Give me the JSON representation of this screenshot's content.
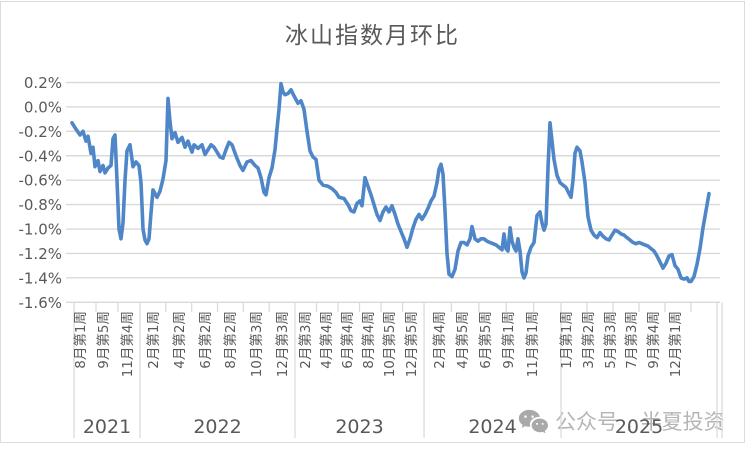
{
  "colors": {
    "line": "#4e86c8",
    "grid": "#d9d9d9",
    "axis_text": "#595959",
    "title_text": "#595959",
    "watermark": "#b5b5b5",
    "frame_border": "#dcdcdc"
  },
  "watermark": {
    "icon": "wechat-icon",
    "text1": "公众号",
    "divider": ",",
    "text2": "半夏投资"
  },
  "chart_data": {
    "type": "line",
    "title": "冰山指数月环比",
    "grid": true,
    "legend": false,
    "y_axis": {
      "unit": "%",
      "max": 0.2,
      "min": -1.6,
      "step": 0.2,
      "tick_labels": [
        "0.2%",
        "0.0%",
        "-0.2%",
        "-0.4%",
        "-0.6%",
        "-0.8%",
        "-1.0%",
        "-1.2%",
        "-1.4%",
        "-1.6%"
      ]
    },
    "x_axis": {
      "ticks": [
        {
          "label": "8月第1周",
          "f": 0.017
        },
        {
          "label": "9月第5周",
          "f": 0.0526
        },
        {
          "label": "11月第4周",
          "f": 0.0897
        },
        {
          "label": "2月第1周",
          "f": 0.1298
        },
        {
          "label": "4月第2周",
          "f": 0.17
        },
        {
          "label": "6月第2周",
          "f": 0.2102
        },
        {
          "label": "8月第2周",
          "f": 0.2489
        },
        {
          "label": "10月第3周",
          "f": 0.289
        },
        {
          "label": "12月第3周",
          "f": 0.3292
        },
        {
          "label": "2月第3周",
          "f": 0.3648
        },
        {
          "label": "4月第4周",
          "f": 0.3972
        },
        {
          "label": "6月第4周",
          "f": 0.4297
        },
        {
          "label": "8月第4周",
          "f": 0.4622
        },
        {
          "label": "10月第5周",
          "f": 0.4946
        },
        {
          "label": "12月第5周",
          "f": 0.5286
        },
        {
          "label": "2月第4周",
          "f": 0.5719
        },
        {
          "label": "4月第5周",
          "f": 0.6074
        },
        {
          "label": "6月第5周",
          "f": 0.643
        },
        {
          "label": "9月第1周",
          "f": 0.6785
        },
        {
          "label": "11月第1周",
          "f": 0.7156
        },
        {
          "label": "1月第1周",
          "f": 0.7682
        },
        {
          "label": "3月第2周",
          "f": 0.8022
        },
        {
          "label": "5月第3周",
          "f": 0.8362
        },
        {
          "label": "7月第3周",
          "f": 0.8686
        },
        {
          "label": "9月第4周",
          "f": 0.9026
        },
        {
          "label": "12月第1周",
          "f": 0.9366
        }
      ],
      "year_groups": [
        {
          "label": "2021",
          "f0": 0.0062,
          "f1": 0.1082,
          "slots": 3
        },
        {
          "label": "2022",
          "f0": 0.1082,
          "f1": 0.3478,
          "slots": 6
        },
        {
          "label": "2023",
          "f0": 0.3478,
          "f1": 0.5472,
          "slots": 6
        },
        {
          "label": "2024",
          "f0": 0.5472,
          "f1": 0.7589,
          "slots": 5
        },
        {
          "label": "2025",
          "f0": 0.7589,
          "f1": 1.0,
          "slots": 6
        }
      ]
    },
    "series": [
      {
        "name": "冰山指数月环比",
        "color": "#4e86c8",
        "points": [
          [
            0.0,
            -0.13
          ],
          [
            0.0047,
            -0.17
          ],
          [
            0.0125,
            -0.23
          ],
          [
            0.0172,
            -0.2
          ],
          [
            0.0219,
            -0.28
          ],
          [
            0.0251,
            -0.24
          ],
          [
            0.0298,
            -0.38
          ],
          [
            0.0329,
            -0.33
          ],
          [
            0.0361,
            -0.49
          ],
          [
            0.0408,
            -0.44
          ],
          [
            0.0439,
            -0.53
          ],
          [
            0.0486,
            -0.48
          ],
          [
            0.0517,
            -0.54
          ],
          [
            0.0564,
            -0.5
          ],
          [
            0.0611,
            -0.48
          ],
          [
            0.0643,
            -0.26
          ],
          [
            0.0674,
            -0.23
          ],
          [
            0.0705,
            -0.6
          ],
          [
            0.0737,
            -1.0
          ],
          [
            0.0768,
            -1.08
          ],
          [
            0.0799,
            -0.95
          ],
          [
            0.0831,
            -0.6
          ],
          [
            0.0862,
            -0.36
          ],
          [
            0.0909,
            -0.31
          ],
          [
            0.0956,
            -0.49
          ],
          [
            0.1003,
            -0.45
          ],
          [
            0.105,
            -0.48
          ],
          [
            0.1082,
            -0.62
          ],
          [
            0.1113,
            -1.0
          ],
          [
            0.1144,
            -1.09
          ],
          [
            0.1176,
            -1.12
          ],
          [
            0.1207,
            -1.08
          ],
          [
            0.1238,
            -0.87
          ],
          [
            0.127,
            -0.68
          ],
          [
            0.1301,
            -0.71
          ],
          [
            0.1332,
            -0.74
          ],
          [
            0.1379,
            -0.69
          ],
          [
            0.1426,
            -0.59
          ],
          [
            0.1473,
            -0.44
          ],
          [
            0.1505,
            0.07
          ],
          [
            0.1536,
            -0.12
          ],
          [
            0.1567,
            -0.26
          ],
          [
            0.1614,
            -0.21
          ],
          [
            0.1661,
            -0.29
          ],
          [
            0.1724,
            -0.25
          ],
          [
            0.1771,
            -0.33
          ],
          [
            0.1818,
            -0.28
          ],
          [
            0.1881,
            -0.37
          ],
          [
            0.1912,
            -0.31
          ],
          [
            0.1975,
            -0.34
          ],
          [
            0.2038,
            -0.31
          ],
          [
            0.2085,
            -0.39
          ],
          [
            0.2132,
            -0.35
          ],
          [
            0.2179,
            -0.31
          ],
          [
            0.2226,
            -0.33
          ],
          [
            0.2273,
            -0.37
          ],
          [
            0.232,
            -0.41
          ],
          [
            0.2367,
            -0.42
          ],
          [
            0.2414,
            -0.35
          ],
          [
            0.2461,
            -0.29
          ],
          [
            0.2508,
            -0.31
          ],
          [
            0.2571,
            -0.4
          ],
          [
            0.2633,
            -0.48
          ],
          [
            0.268,
            -0.52
          ],
          [
            0.2743,
            -0.45
          ],
          [
            0.2806,
            -0.44
          ],
          [
            0.2868,
            -0.48
          ],
          [
            0.2915,
            -0.5
          ],
          [
            0.2962,
            -0.58
          ],
          [
            0.3009,
            -0.7
          ],
          [
            0.3041,
            -0.72
          ],
          [
            0.3088,
            -0.58
          ],
          [
            0.3135,
            -0.5
          ],
          [
            0.3182,
            -0.35
          ],
          [
            0.3213,
            -0.18
          ],
          [
            0.3245,
            -0.02
          ],
          [
            0.3276,
            0.19
          ],
          [
            0.3308,
            0.12
          ],
          [
            0.3339,
            0.1
          ],
          [
            0.3386,
            0.11
          ],
          [
            0.3433,
            0.14
          ],
          [
            0.348,
            0.09
          ],
          [
            0.3542,
            0.03
          ],
          [
            0.3589,
            0.05
          ],
          [
            0.3636,
            -0.02
          ],
          [
            0.3683,
            -0.2
          ],
          [
            0.373,
            -0.36
          ],
          [
            0.3777,
            -0.41
          ],
          [
            0.3824,
            -0.43
          ],
          [
            0.3871,
            -0.6
          ],
          [
            0.3934,
            -0.64
          ],
          [
            0.4013,
            -0.65
          ],
          [
            0.4075,
            -0.67
          ],
          [
            0.4138,
            -0.7
          ],
          [
            0.4185,
            -0.74
          ],
          [
            0.4263,
            -0.75
          ],
          [
            0.4326,
            -0.8
          ],
          [
            0.4373,
            -0.85
          ],
          [
            0.442,
            -0.86
          ],
          [
            0.4467,
            -0.79
          ],
          [
            0.4514,
            -0.77
          ],
          [
            0.4545,
            -0.81
          ],
          [
            0.4592,
            -0.58
          ],
          [
            0.4639,
            -0.65
          ],
          [
            0.4687,
            -0.72
          ],
          [
            0.4734,
            -0.8
          ],
          [
            0.4781,
            -0.88
          ],
          [
            0.4828,
            -0.93
          ],
          [
            0.4875,
            -0.86
          ],
          [
            0.4922,
            -0.82
          ],
          [
            0.4969,
            -0.86
          ],
          [
            0.5016,
            -0.81
          ],
          [
            0.5063,
            -0.88
          ],
          [
            0.511,
            -0.96
          ],
          [
            0.5157,
            -1.02
          ],
          [
            0.5204,
            -1.08
          ],
          [
            0.5251,
            -1.15
          ],
          [
            0.5298,
            -1.08
          ],
          [
            0.5345,
            -0.99
          ],
          [
            0.5392,
            -0.92
          ],
          [
            0.5439,
            -0.88
          ],
          [
            0.5486,
            -0.92
          ],
          [
            0.5533,
            -0.88
          ],
          [
            0.558,
            -0.83
          ],
          [
            0.5627,
            -0.77
          ],
          [
            0.5674,
            -0.73
          ],
          [
            0.5721,
            -0.62
          ],
          [
            0.5752,
            -0.51
          ],
          [
            0.5784,
            -0.47
          ],
          [
            0.5815,
            -0.55
          ],
          [
            0.5846,
            -0.85
          ],
          [
            0.5878,
            -1.2
          ],
          [
            0.5909,
            -1.37
          ],
          [
            0.5956,
            -1.39
          ],
          [
            0.6003,
            -1.33
          ],
          [
            0.605,
            -1.18
          ],
          [
            0.6097,
            -1.11
          ],
          [
            0.6144,
            -1.11
          ],
          [
            0.6191,
            -1.13
          ],
          [
            0.6238,
            -1.08
          ],
          [
            0.627,
            -0.98
          ],
          [
            0.6317,
            -1.08
          ],
          [
            0.6364,
            -1.1
          ],
          [
            0.6411,
            -1.08
          ],
          [
            0.6458,
            -1.08
          ],
          [
            0.6505,
            -1.1
          ],
          [
            0.6552,
            -1.11
          ],
          [
            0.6599,
            -1.12
          ],
          [
            0.6646,
            -1.13
          ],
          [
            0.6693,
            -1.15
          ],
          [
            0.674,
            -1.17
          ],
          [
            0.6771,
            -1.04
          ],
          [
            0.6803,
            -1.16
          ],
          [
            0.6834,
            -1.18
          ],
          [
            0.6866,
            -0.99
          ],
          [
            0.6897,
            -1.1
          ],
          [
            0.6928,
            -1.15
          ],
          [
            0.696,
            -1.18
          ],
          [
            0.6991,
            -1.08
          ],
          [
            0.7022,
            -1.18
          ],
          [
            0.7053,
            -1.35
          ],
          [
            0.7085,
            -1.4
          ],
          [
            0.7116,
            -1.36
          ],
          [
            0.7147,
            -1.22
          ],
          [
            0.7194,
            -1.15
          ],
          [
            0.7241,
            -1.11
          ],
          [
            0.7288,
            -0.89
          ],
          [
            0.7335,
            -0.86
          ],
          [
            0.7367,
            -0.95
          ],
          [
            0.7398,
            -1.01
          ],
          [
            0.7429,
            -0.96
          ],
          [
            0.7461,
            -0.5
          ],
          [
            0.7492,
            -0.13
          ],
          [
            0.7523,
            -0.28
          ],
          [
            0.7555,
            -0.43
          ],
          [
            0.7602,
            -0.56
          ],
          [
            0.7649,
            -0.62
          ],
          [
            0.7696,
            -0.64
          ],
          [
            0.7743,
            -0.66
          ],
          [
            0.779,
            -0.71
          ],
          [
            0.7821,
            -0.74
          ],
          [
            0.7853,
            -0.6
          ],
          [
            0.7884,
            -0.38
          ],
          [
            0.7916,
            -0.33
          ],
          [
            0.7963,
            -0.36
          ],
          [
            0.7994,
            -0.45
          ],
          [
            0.8041,
            -0.62
          ],
          [
            0.8088,
            -0.9
          ],
          [
            0.8135,
            -1.01
          ],
          [
            0.8182,
            -1.05
          ],
          [
            0.8229,
            -1.07
          ],
          [
            0.8276,
            -1.03
          ],
          [
            0.8323,
            -1.06
          ],
          [
            0.837,
            -1.08
          ],
          [
            0.8417,
            -1.09
          ],
          [
            0.8464,
            -1.05
          ],
          [
            0.8511,
            -1.01
          ],
          [
            0.8558,
            -1.02
          ],
          [
            0.8605,
            -1.04
          ],
          [
            0.8652,
            -1.05
          ],
          [
            0.8699,
            -1.07
          ],
          [
            0.8746,
            -1.09
          ],
          [
            0.8793,
            -1.11
          ],
          [
            0.884,
            -1.12
          ],
          [
            0.8887,
            -1.11
          ],
          [
            0.8934,
            -1.12
          ],
          [
            0.8981,
            -1.13
          ],
          [
            0.9028,
            -1.14
          ],
          [
            0.9075,
            -1.16
          ],
          [
            0.9122,
            -1.18
          ],
          [
            0.9169,
            -1.22
          ],
          [
            0.9216,
            -1.27
          ],
          [
            0.9263,
            -1.32
          ],
          [
            0.931,
            -1.28
          ],
          [
            0.9357,
            -1.22
          ],
          [
            0.9404,
            -1.21
          ],
          [
            0.9451,
            -1.3
          ],
          [
            0.9498,
            -1.33
          ],
          [
            0.9545,
            -1.4
          ],
          [
            0.9593,
            -1.41
          ],
          [
            0.964,
            -1.4
          ],
          [
            0.9671,
            -1.43
          ],
          [
            0.9702,
            -1.43
          ],
          [
            0.9749,
            -1.39
          ],
          [
            0.9796,
            -1.29
          ],
          [
            0.9843,
            -1.16
          ],
          [
            0.989,
            -0.99
          ],
          [
            0.9937,
            -0.85
          ],
          [
            0.9984,
            -0.71
          ]
        ]
      }
    ]
  }
}
